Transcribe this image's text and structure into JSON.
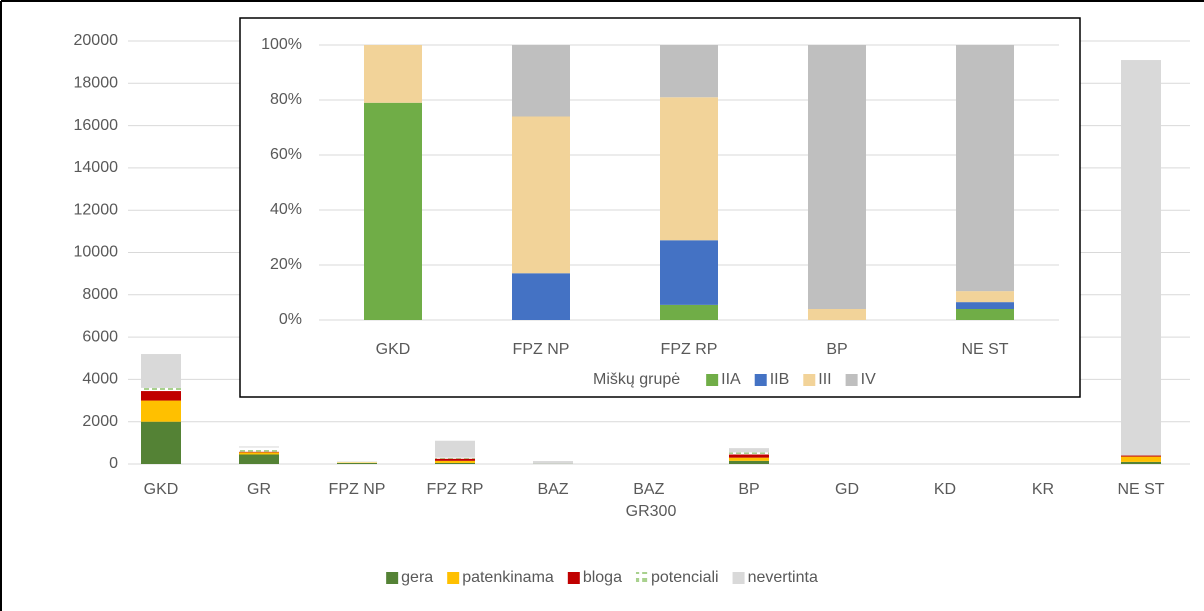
{
  "chart_data": [
    {
      "type": "bar",
      "stacked": true,
      "categories": [
        "GKD",
        "GR",
        "FPZ NP",
        "FPZ RP",
        "BAZ",
        "BAZ GR300",
        "BP",
        "GD",
        "KD",
        "KR",
        "NE ST"
      ],
      "series": [
        {
          "name": "gera",
          "color": "#548235",
          "values": [
            2000,
            450,
            50,
            50,
            10,
            0,
            150,
            0,
            0,
            0,
            100
          ]
        },
        {
          "name": "patenkinama",
          "color": "#ffc000",
          "values": [
            1000,
            100,
            20,
            100,
            0,
            0,
            150,
            0,
            0,
            0,
            250
          ]
        },
        {
          "name": "bloga",
          "color": "#c00000",
          "values": [
            450,
            30,
            0,
            100,
            0,
            0,
            150,
            0,
            0,
            0,
            50
          ]
        },
        {
          "name": "potenciali",
          "color": "#a9d18e",
          "pattern": "dashed",
          "values": [
            150,
            200,
            30,
            50,
            0,
            0,
            100,
            0,
            0,
            0,
            0
          ]
        },
        {
          "name": "nevertinta",
          "color": "#d9d9d9",
          "values": [
            1600,
            50,
            20,
            800,
            130,
            0,
            200,
            0,
            0,
            0,
            18700
          ]
        }
      ],
      "ylim": [
        0,
        20000
      ],
      "yticks": [
        0,
        2000,
        4000,
        6000,
        8000,
        10000,
        12000,
        14000,
        16000,
        18000,
        20000
      ],
      "grid": true,
      "legend": "bottom"
    },
    {
      "type": "bar",
      "stacked": true,
      "categories": [
        "GKD",
        "FPZ NP",
        "FPZ RP",
        "BP",
        "NE ST"
      ],
      "series": [
        {
          "name": "IIA",
          "color": "#70ad47",
          "values": [
            79,
            0,
            5.5,
            0,
            4
          ]
        },
        {
          "name": "IIB",
          "color": "#4472c4",
          "values": [
            0,
            17,
            23.5,
            0,
            2.5
          ]
        },
        {
          "name": "III",
          "color": "#f2d399",
          "values": [
            21,
            57,
            52,
            4,
            4
          ]
        },
        {
          "name": "IV",
          "color": "#bfbfbf",
          "values": [
            0,
            26,
            19,
            96,
            89.5
          ]
        }
      ],
      "legend_title": "Miškų grupė",
      "ylim": [
        0,
        100
      ],
      "yticks": [
        {
          "value": 0,
          "label": "0%"
        },
        {
          "value": 20,
          "label": "20%"
        },
        {
          "value": 40,
          "label": "40%"
        },
        {
          "value": 60,
          "label": "60%"
        },
        {
          "value": 80,
          "label": "80%"
        },
        {
          "value": 100,
          "label": "100%"
        }
      ],
      "grid": true,
      "legend": "bottom-right"
    }
  ]
}
